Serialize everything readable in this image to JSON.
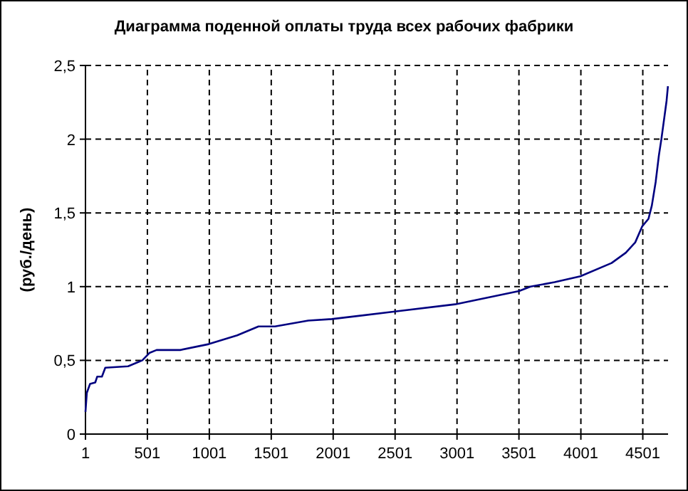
{
  "chart_data": {
    "type": "line",
    "title": "Диаграмма поденной оплаты труда всех рабочих фабрики",
    "ylabel": "(руб./день)",
    "x": [
      1,
      12,
      38,
      80,
      96,
      134,
      161,
      345,
      460,
      517,
      575,
      766,
      996,
      1226,
      1398,
      1531,
      1800,
      1990,
      2488,
      2985,
      3502,
      3594,
      3789,
      3997,
      4249,
      4364,
      4440,
      4497,
      4547,
      4574,
      4605,
      4631,
      4651,
      4677,
      4693,
      4704
    ],
    "series": [
      {
        "color": "#000080",
        "values": [
          0.15,
          0.28,
          0.34,
          0.35,
          0.39,
          0.39,
          0.45,
          0.46,
          0.5,
          0.55,
          0.57,
          0.57,
          0.61,
          0.67,
          0.73,
          0.73,
          0.77,
          0.78,
          0.83,
          0.88,
          0.97,
          1.0,
          1.03,
          1.07,
          1.16,
          1.23,
          1.3,
          1.41,
          1.46,
          1.55,
          1.71,
          1.89,
          2.0,
          2.16,
          2.26,
          2.36
        ]
      }
    ],
    "xlim": [
      1,
      4705
    ],
    "xticks": [
      1,
      501,
      1001,
      1501,
      2001,
      2501,
      3001,
      3501,
      4001,
      4501
    ],
    "ylim": [
      0,
      2.5
    ],
    "yticks": [
      0,
      {
        "value": 0.5,
        "label": "0,5"
      },
      1,
      {
        "value": 1.5,
        "label": "1,5"
      },
      2,
      {
        "value": 2.5,
        "label": "2,5"
      }
    ],
    "grid": true,
    "line_style": "solid",
    "marker": "none"
  }
}
